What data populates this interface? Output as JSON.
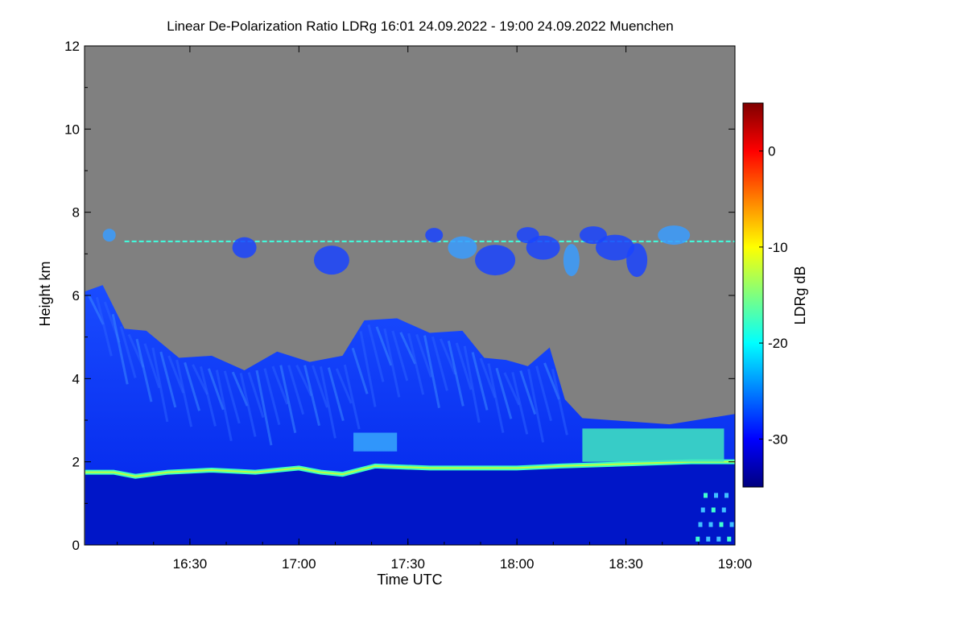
{
  "chart_data": {
    "type": "heatmap",
    "title": "Linear De-Polarization Ratio LDRg   16:01 24.09.2022 - 19:00 24.09.2022 Muenchen",
    "xlabel": "Time UTC",
    "ylabel": "Height km",
    "xlim_hours": [
      16.0167,
      19.0
    ],
    "ylim": [
      0,
      12
    ],
    "x_ticks": [
      {
        "value": 16.5,
        "label": "16:30"
      },
      {
        "value": 17.0,
        "label": "17:00"
      },
      {
        "value": 17.5,
        "label": "17:30"
      },
      {
        "value": 18.0,
        "label": "18:00"
      },
      {
        "value": 18.5,
        "label": "18:30"
      },
      {
        "value": 19.0,
        "label": "19:00"
      }
    ],
    "y_ticks": [
      {
        "value": 0,
        "label": "0"
      },
      {
        "value": 2,
        "label": "2"
      },
      {
        "value": 4,
        "label": "4"
      },
      {
        "value": 6,
        "label": "6"
      },
      {
        "value": 8,
        "label": "8"
      },
      {
        "value": 10,
        "label": "10"
      },
      {
        "value": 12,
        "label": "12"
      }
    ],
    "colorbar": {
      "label": "LDRg dB",
      "range": [
        -35,
        5
      ],
      "ticks": [
        {
          "value": 0,
          "label": "0"
        },
        {
          "value": -10,
          "label": "-10"
        },
        {
          "value": -20,
          "label": "-20"
        },
        {
          "value": -30,
          "label": "-30"
        }
      ],
      "colormap": [
        "#00007f",
        "#0000ff",
        "#007fff",
        "#00ffff",
        "#7fff7f",
        "#ffff00",
        "#ff7f00",
        "#ff0000",
        "#7f0000"
      ],
      "no_signal_color": "#808080"
    },
    "features": {
      "layer_top_profile": [
        {
          "t": 16.02,
          "h": 6.1
        },
        {
          "t": 16.1,
          "h": 6.0
        },
        {
          "t": 16.2,
          "h": 5.2
        },
        {
          "t": 16.3,
          "h": 4.9
        },
        {
          "t": 16.45,
          "h": 4.5
        },
        {
          "t": 16.6,
          "h": 4.3
        },
        {
          "t": 16.75,
          "h": 4.2
        },
        {
          "t": 16.9,
          "h": 4.4
        },
        {
          "t": 17.05,
          "h": 4.4
        },
        {
          "t": 17.2,
          "h": 4.3
        },
        {
          "t": 17.3,
          "h": 5.4
        },
        {
          "t": 17.45,
          "h": 5.2
        },
        {
          "t": 17.6,
          "h": 5.1
        },
        {
          "t": 17.75,
          "h": 4.9
        },
        {
          "t": 17.85,
          "h": 4.5
        },
        {
          "t": 17.95,
          "h": 4.2
        },
        {
          "t": 18.05,
          "h": 4.3
        },
        {
          "t": 18.15,
          "h": 4.5
        },
        {
          "t": 18.22,
          "h": 3.5
        },
        {
          "t": 18.3,
          "h": 2.8
        },
        {
          "t": 18.7,
          "h": 2.9
        },
        {
          "t": 19.0,
          "h": 2.9
        }
      ],
      "cloud_base_profile": [
        {
          "t": 16.02,
          "h": 1.75
        },
        {
          "t": 16.15,
          "h": 1.75
        },
        {
          "t": 16.25,
          "h": 1.65
        },
        {
          "t": 16.4,
          "h": 1.75
        },
        {
          "t": 16.6,
          "h": 1.8
        },
        {
          "t": 16.8,
          "h": 1.75
        },
        {
          "t": 17.0,
          "h": 1.85
        },
        {
          "t": 17.1,
          "h": 1.75
        },
        {
          "t": 17.2,
          "h": 1.7
        },
        {
          "t": 17.35,
          "h": 1.9
        },
        {
          "t": 17.6,
          "h": 1.85
        },
        {
          "t": 17.8,
          "h": 1.85
        },
        {
          "t": 18.0,
          "h": 1.85
        },
        {
          "t": 18.2,
          "h": 1.9
        },
        {
          "t": 18.5,
          "h": 1.95
        },
        {
          "t": 18.8,
          "h": 2.0
        },
        {
          "t": 19.0,
          "h": 2.0
        }
      ],
      "cirrus_height_km": 7.3,
      "cirrus_span_hours": [
        16.2,
        19.0
      ]
    }
  }
}
